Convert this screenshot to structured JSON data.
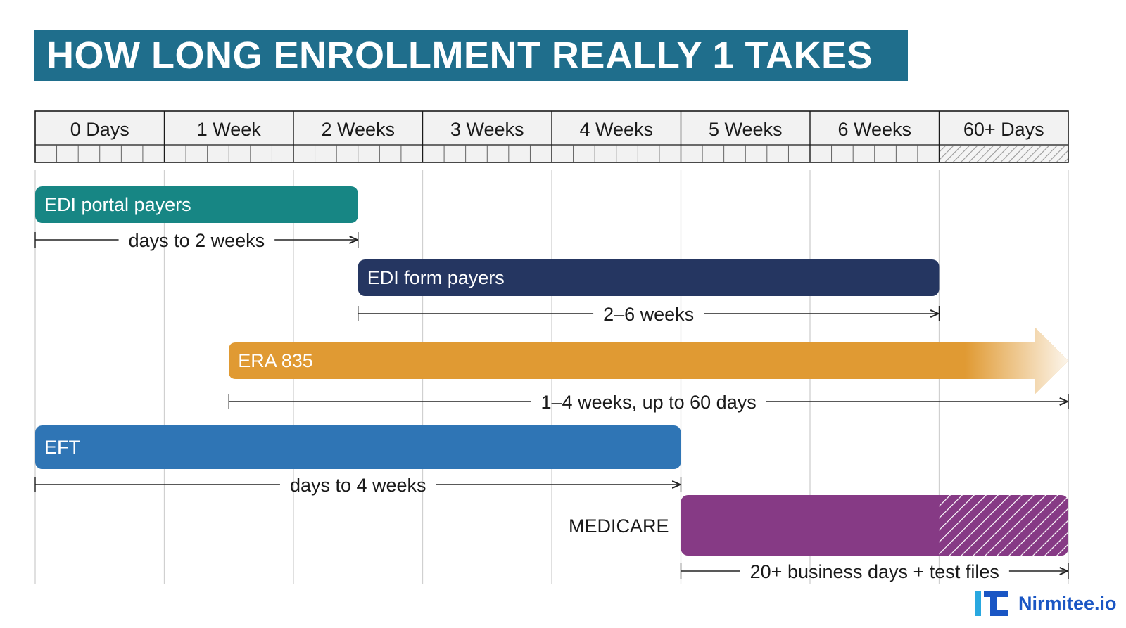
{
  "title": "HOW LONG ENROLLMENT REALLY 1 TAKES",
  "brand": {
    "name": "Nirmitee.io",
    "logo_icon": "nirmitee-logo-icon",
    "color": "#1a56c4"
  },
  "chart_data": {
    "type": "timeline",
    "x_unit": "weeks",
    "xlim": [
      0,
      8
    ],
    "ticks": [
      "0 Days",
      "1 Week",
      "2 Weeks",
      "3 Weeks",
      "4 Weeks",
      "5 Weeks",
      "6 Weeks",
      "60+ Days"
    ],
    "hatched_final_column": true,
    "bars": [
      {
        "label": "EDI portal payers",
        "start": 0,
        "end": 2.5,
        "duration_label": "days to 2 weeks",
        "color": "#178684",
        "label_inside": true
      },
      {
        "label": "EDI form payers",
        "start": 2.5,
        "end": 7,
        "duration_label": "2–6 weeks",
        "color": "#253661",
        "label_inside": true
      },
      {
        "label": "ERA 835",
        "start": 1.5,
        "end": 8,
        "duration_label": "1–4 weeks, up to 60 days",
        "color": "#e09a33",
        "label_inside": true,
        "arrow_fade": true
      },
      {
        "label": "EFT",
        "start": 0,
        "end": 5,
        "duration_label": "days to 4 weeks",
        "color": "#2f75b5",
        "label_inside": true
      },
      {
        "label": "MEDICARE",
        "start": 5,
        "end": 8,
        "duration_label": "20+ business days + test files",
        "color": "#863a85",
        "label_inside": false,
        "hatch_from": 7
      }
    ]
  }
}
